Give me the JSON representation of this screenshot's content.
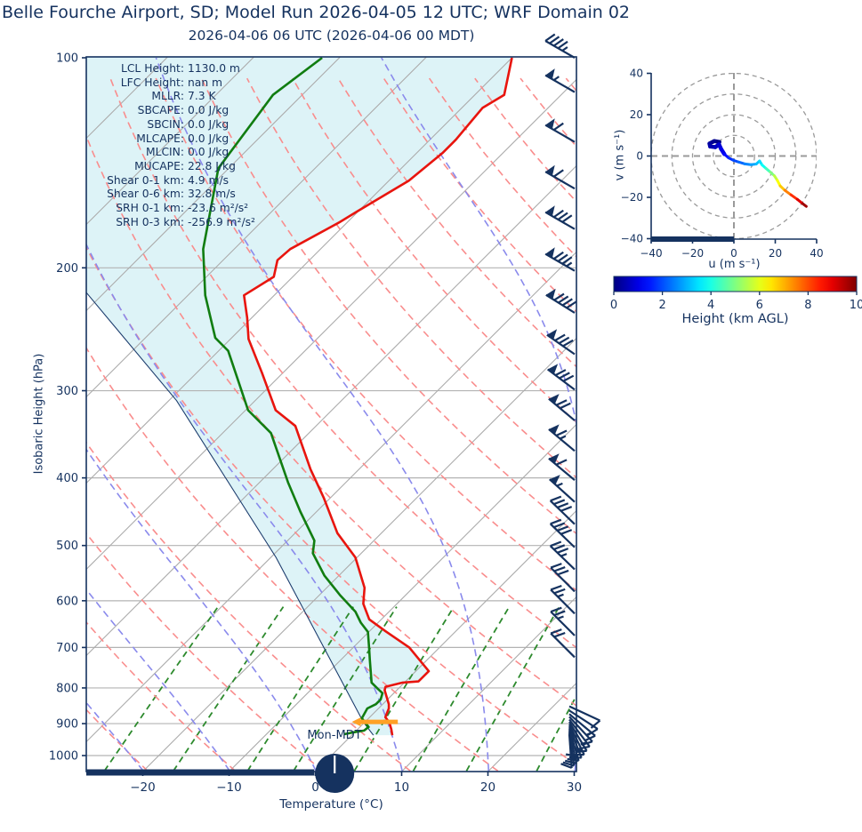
{
  "title": "Belle Fourche Airport, SD; Model Run 2026-04-05 12 UTC; WRF Domain 02",
  "subtitle": "2026-04-06 06 UTC  (2026-04-06 00 MDT)",
  "skewt": {
    "ylabel": "Isobaric Height (hPa)",
    "xlabel": "Temperature (°C)",
    "x_ticks": [
      -20,
      -10,
      0,
      10,
      20,
      30
    ],
    "y_ticks": [
      100,
      200,
      300,
      400,
      500,
      600,
      700,
      800,
      900,
      1000
    ],
    "surface_label": "Mon-MDT",
    "stats": [
      {
        "label": "LCL Height:",
        "value": "1130.0 m"
      },
      {
        "label": "LFC Height:",
        "value": "nan m"
      },
      {
        "label": "MLLR:",
        "value": "7.3 K"
      },
      {
        "label": "SBCAPE:",
        "value": "0.0 J/kg"
      },
      {
        "label": "SBCIN:",
        "value": "0.0 J/kg"
      },
      {
        "label": "MLCAPE:",
        "value": "0.0 J/kg"
      },
      {
        "label": "MLCIN:",
        "value": "0.0 J/kg"
      },
      {
        "label": "MUCAPE:",
        "value": "22.8 J/kg"
      },
      {
        "label": "Shear 0-1 km:",
        "value": "4.9 m/s"
      },
      {
        "label": "Shear 0-6 km:",
        "value": "32.8 m/s"
      },
      {
        "label": "SRH 0-1 km:",
        "value": "-23.6 m²/s²"
      },
      {
        "label": "SRH 0-3 km:",
        "value": "-256.9 m²/s²"
      }
    ]
  },
  "hodograph": {
    "xlabel": "u (m s⁻¹)",
    "ylabel": "v (m s⁻¹)",
    "x_ticks": [
      -40,
      -20,
      0,
      20,
      40
    ],
    "y_ticks": [
      -40,
      -20,
      0,
      20,
      40
    ],
    "ring_radii": [
      10,
      20,
      30,
      40
    ]
  },
  "colorbar": {
    "label": "Height (km AGL)",
    "ticks": [
      0,
      2,
      4,
      6,
      8,
      10
    ],
    "min": 0,
    "max": 10
  },
  "colors": {
    "navy": "#15325f",
    "grid_gray": "#b3b3b3",
    "isotherm_gray": "#ababab",
    "dry_adiabat": "#f98d8d",
    "moist_adiabat": "#8a8aec",
    "mixing_ratio": "#2d8a2d",
    "temperature": "#e8150e",
    "dewpoint": "#117d11",
    "parcel": "#1d3d6e",
    "cape_fill": "#ddf3f7",
    "marker_orange": "#ffa126",
    "clock_hand": "#ffffff"
  },
  "chart_data": {
    "type": "skewt-sounding",
    "pressure_range": [
      100,
      1052
    ],
    "temp_axis_range": [
      -26.6,
      30
    ],
    "temperature_profile": [
      [
        -60,
        100
      ],
      [
        -56.6,
        113
      ],
      [
        -57.6,
        118
      ],
      [
        -57,
        131
      ],
      [
        -57,
        137
      ],
      [
        -57.7,
        150
      ],
      [
        -60.1,
        166
      ],
      [
        -60.9,
        172
      ],
      [
        -63.5,
        188
      ],
      [
        -63.7,
        195
      ],
      [
        -62.2,
        206
      ],
      [
        -63.5,
        219
      ],
      [
        -60.5,
        236
      ],
      [
        -57.9,
        253
      ],
      [
        -52.4,
        283
      ],
      [
        -46.5,
        320
      ],
      [
        -42.4,
        337
      ],
      [
        -35.6,
        389
      ],
      [
        -30.8,
        427
      ],
      [
        -25.1,
        480
      ],
      [
        -20.2,
        520
      ],
      [
        -15.6,
        575
      ],
      [
        -13.9,
        606
      ],
      [
        -11.4,
        638
      ],
      [
        -8.2,
        663
      ],
      [
        -3.5,
        700
      ],
      [
        1.5,
        757
      ],
      [
        1.5,
        783
      ],
      [
        -0.2,
        786
      ],
      [
        -1.7,
        797
      ],
      [
        -1.4,
        806
      ],
      [
        0.7,
        844
      ],
      [
        1.2,
        856
      ],
      [
        1.8,
        881
      ],
      [
        2.9,
        897
      ],
      [
        3.9,
        917
      ],
      [
        4.7,
        935
      ]
    ],
    "dewpoint_profile": [
      [
        -82,
        100
      ],
      [
        -83.4,
        113
      ],
      [
        -81.2,
        144
      ],
      [
        -73.6,
        188
      ],
      [
        -68,
        219
      ],
      [
        -61.9,
        252
      ],
      [
        -58.9,
        263
      ],
      [
        -49.7,
        320
      ],
      [
        -44.4,
        345
      ],
      [
        -36.7,
        406
      ],
      [
        -31.9,
        447
      ],
      [
        -26.9,
        492
      ],
      [
        -25.6,
        513
      ],
      [
        -21.7,
        552
      ],
      [
        -17.6,
        589
      ],
      [
        -13.9,
        622
      ],
      [
        -12,
        645
      ],
      [
        -10.1,
        665
      ],
      [
        -8,
        703
      ],
      [
        -6.7,
        728
      ],
      [
        -3.8,
        786
      ],
      [
        -2.3,
        803
      ],
      [
        -1.3,
        814
      ],
      [
        -0.8,
        831
      ],
      [
        -0.8,
        844
      ],
      [
        -1.3,
        856
      ],
      [
        -0.8,
        884
      ],
      [
        0.1,
        897
      ],
      [
        1.0,
        910
      ],
      [
        0.9,
        921
      ],
      [
        -0.1,
        926
      ],
      [
        -1.0,
        932
      ]
    ],
    "parcel_profile": [
      [
        -82.4,
        216
      ],
      [
        -59.1,
        310
      ],
      [
        -29.4,
        520
      ],
      [
        -11.6,
        724
      ],
      [
        -0.2,
        895
      ],
      [
        2.5,
        935
      ]
    ],
    "lcl_marker": {
      "pressure": 895,
      "T_start": -0.6,
      "T_end": 3.8
    },
    "isotherms_degC": [
      -120,
      -110,
      -100,
      -90,
      -80,
      -70,
      -60,
      -50,
      -40,
      -30,
      -20,
      -10,
      0,
      10,
      20,
      30,
      40
    ],
    "dry_adiabats_K": [
      240,
      250,
      260,
      270,
      280,
      290,
      300,
      310,
      320,
      330,
      340,
      350,
      360,
      370,
      380,
      390,
      400,
      410,
      420,
      430,
      440,
      450
    ],
    "moist_adiabats_start_degC": [
      -60,
      -50,
      -40,
      -30,
      -20,
      -10,
      0,
      10,
      20,
      30,
      40
    ],
    "mixing_ratios_gkg": [
      0.5,
      1,
      2,
      3,
      5,
      8,
      12,
      20
    ],
    "wind_barbs": [
      [
        100,
        150,
        0,
        4,
        1
      ],
      [
        112,
        150,
        1,
        0,
        1
      ],
      [
        132,
        150,
        1,
        1,
        0
      ],
      [
        154,
        150,
        1,
        1,
        0
      ],
      [
        176,
        150,
        1,
        3,
        0
      ],
      [
        202,
        150,
        1,
        3,
        1
      ],
      [
        232,
        148,
        1,
        4,
        0
      ],
      [
        266,
        145,
        1,
        3,
        0
      ],
      [
        299,
        143,
        1,
        3,
        0
      ],
      [
        331,
        140,
        1,
        2,
        0
      ],
      [
        366,
        140,
        1,
        1,
        1
      ],
      [
        403,
        140,
        1,
        1,
        0
      ],
      [
        433,
        138,
        1,
        0,
        1
      ],
      [
        466,
        136,
        0,
        4,
        0
      ],
      [
        503,
        136,
        0,
        4,
        0
      ],
      [
        541,
        136,
        0,
        3,
        1
      ],
      [
        582,
        135,
        0,
        3,
        0
      ],
      [
        626,
        135,
        0,
        2,
        1
      ],
      [
        673,
        135,
        0,
        2,
        1
      ],
      [
        723,
        135,
        0,
        2,
        0
      ],
      [
        850,
        -25,
        0,
        1,
        0
      ],
      [
        862,
        -33,
        0,
        1,
        0
      ],
      [
        872,
        -40,
        0,
        1,
        1
      ],
      [
        880,
        -47,
        0,
        1,
        0
      ],
      [
        888,
        -53,
        0,
        1,
        1
      ],
      [
        895,
        -59,
        0,
        1,
        0
      ],
      [
        902,
        -64,
        0,
        1,
        1
      ],
      [
        908,
        -69,
        0,
        1,
        0
      ],
      [
        914,
        -74,
        0,
        2,
        0
      ],
      [
        920,
        -78,
        0,
        1,
        1
      ],
      [
        926,
        -82,
        0,
        1,
        0
      ],
      [
        932,
        -86,
        0,
        1,
        0
      ]
    ],
    "hodograph_trace": [
      [
        -7.0,
        6.8,
        0
      ],
      [
        -9.5,
        7.2,
        0.1
      ],
      [
        -11.8,
        6.0,
        0.25
      ],
      [
        -11.5,
        4.6,
        0.4
      ],
      [
        -9.0,
        4.3,
        0.55
      ],
      [
        -7.2,
        5.6,
        0.7
      ],
      [
        -6.2,
        3.4,
        0.9
      ],
      [
        -4.6,
        0.9,
        1.2
      ],
      [
        -2.6,
        -0.9,
        1.5
      ],
      [
        -0.4,
        -2.0,
        1.8
      ],
      [
        2.2,
        -2.9,
        2.1
      ],
      [
        5.2,
        -3.8,
        2.4
      ],
      [
        8.2,
        -4.2,
        2.7
      ],
      [
        10.8,
        -3.9,
        3.0
      ],
      [
        12.4,
        -2.4,
        3.3
      ],
      [
        13.6,
        -4.3,
        3.6
      ],
      [
        15.5,
        -6.0,
        4.1
      ],
      [
        17.6,
        -7.8,
        4.7
      ],
      [
        19.6,
        -9.6,
        5.3
      ],
      [
        21.0,
        -11.8,
        5.9
      ],
      [
        22.4,
        -14.5,
        6.5
      ],
      [
        24.6,
        -16.6,
        7.1
      ],
      [
        27.6,
        -18.8,
        7.9
      ],
      [
        30.7,
        -21.0,
        8.7
      ],
      [
        33.3,
        -23.1,
        9.4
      ],
      [
        35.0,
        -24.4,
        10
      ]
    ],
    "time_progress": {
      "skewt_fraction": 0.465,
      "hodograph_fraction": 0.5
    }
  }
}
